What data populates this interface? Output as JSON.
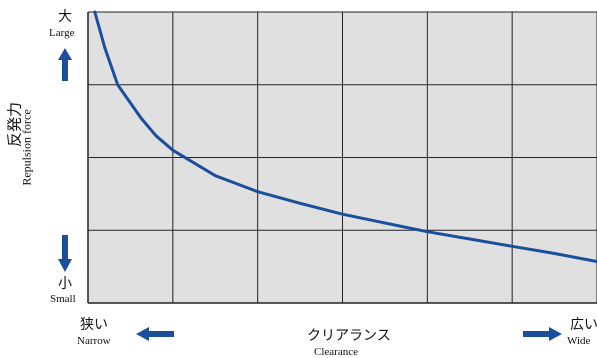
{
  "chart_data": {
    "type": "line",
    "x_axis": {
      "label_jp": "クリアランス",
      "label_en": "Clearance",
      "left_jp": "狭い",
      "left_en": "Narrow",
      "right_jp": "広い",
      "right_en": "Wide"
    },
    "y_axis": {
      "label_jp": "反発力",
      "label_en": "Repulsion force",
      "top_jp": "大",
      "top_en": "Large",
      "bottom_jp": "小",
      "bottom_en": "Small"
    },
    "grid": true,
    "grid_columns": 6,
    "grid_rows": 4,
    "xlim": [
      0,
      6
    ],
    "ylim": [
      0,
      4
    ],
    "series": [
      {
        "x": [
          0.08,
          0.2,
          0.35,
          0.5,
          0.62,
          0.8,
          1.0,
          1.5,
          2.0,
          2.5,
          3.0,
          3.5,
          4.0,
          4.5,
          5.0,
          5.5,
          6.0
        ],
        "y": [
          4.0,
          3.5,
          3.0,
          2.75,
          2.55,
          2.3,
          2.1,
          1.75,
          1.53,
          1.37,
          1.22,
          1.1,
          0.98,
          0.88,
          0.78,
          0.68,
          0.57
        ]
      }
    ],
    "colors": {
      "plot_background": "#e0e0e0",
      "grid": "#222222",
      "line": "#1a4f9c",
      "arrow": "#1a4f9c"
    }
  }
}
